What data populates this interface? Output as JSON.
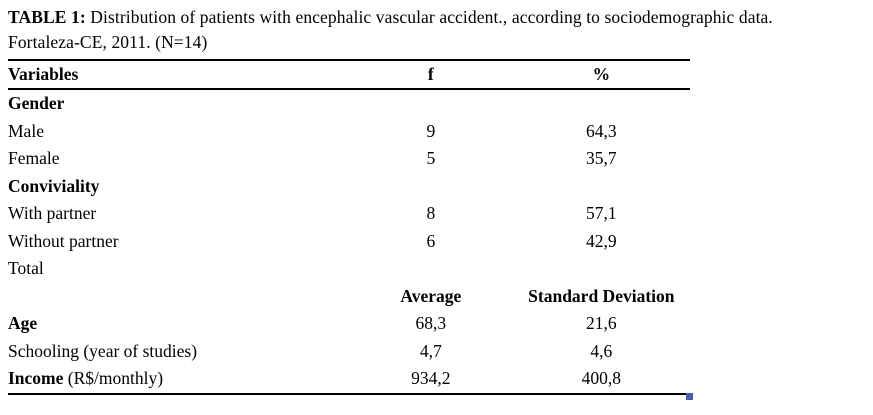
{
  "caption": {
    "label": "TABLE 1:",
    "line1_rest": " Distribution of patients with encephalic vascular accident., according to sociodemographic data.",
    "line2": "Fortaleza-CE, 2011. (N=14)"
  },
  "columns": {
    "variables": "Variables",
    "f": "f",
    "pct": "%"
  },
  "rows": [
    {
      "label": "Gender",
      "f": "",
      "pct": ""
    },
    {
      "label": "Male",
      "f": "9",
      "pct": "64,3"
    },
    {
      "label": "Female",
      "f": "5",
      "pct": "35,7"
    },
    {
      "label": "Conviviality",
      "f": "",
      "pct": ""
    },
    {
      "label": "With partner",
      "f": "8",
      "pct": "57,1"
    },
    {
      "label": "Without partner",
      "f": "6",
      "pct": "42,9"
    },
    {
      "label": "Total",
      "f": "",
      "pct": ""
    }
  ],
  "stats_header": {
    "avg": "Average",
    "sd": "Standard Deviation"
  },
  "stats_rows": [
    {
      "label": "Age",
      "avg": "68,3",
      "sd": "21,6"
    },
    {
      "label": "Schooling (year of studies)",
      "avg": "4,7",
      "sd": "4,6"
    },
    {
      "label_bold": "Income",
      "label_rest": " (R$/monthly)",
      "avg": "934,2",
      "sd": "400,8"
    }
  ],
  "colors": {
    "table_rule": "#000000",
    "resize_handle": "#4a5aae"
  }
}
